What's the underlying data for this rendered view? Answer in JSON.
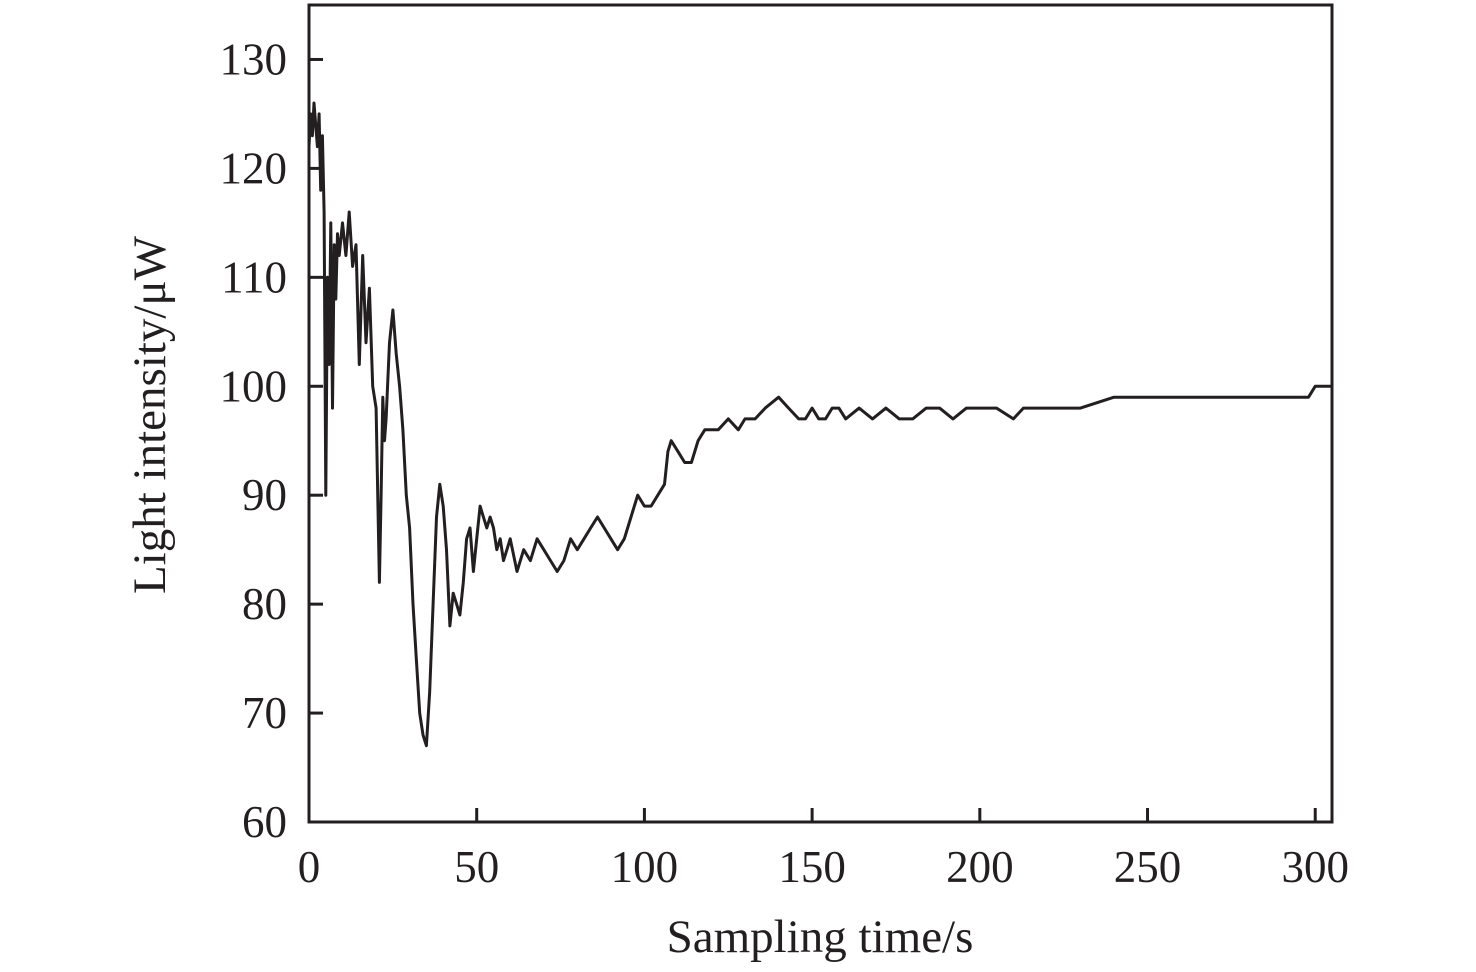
{
  "chart_data": {
    "type": "line",
    "title": "",
    "xlabel": "Sampling time/s",
    "ylabel": "Light intensity/μW",
    "xlim": [
      0,
      305
    ],
    "ylim": [
      60,
      135
    ],
    "xticks": [
      0,
      50,
      100,
      150,
      200,
      250,
      300
    ],
    "yticks": [
      60,
      70,
      80,
      90,
      100,
      110,
      120,
      130
    ],
    "grid": false,
    "legend": "none",
    "line_color": "#231f20",
    "series": [
      {
        "x": [
          0,
          0.5,
          1,
          1.5,
          2,
          2.5,
          3,
          3.5,
          4,
          4.5,
          5,
          5.5,
          6,
          6.5,
          7,
          7.5,
          8,
          8.5,
          9,
          10,
          11,
          12,
          13,
          14,
          15,
          16,
          17,
          18,
          19,
          20,
          21,
          21.5,
          22,
          22.5,
          23,
          24,
          25,
          26,
          27,
          28,
          29,
          30,
          31,
          32,
          33,
          34,
          35,
          36,
          37,
          38,
          39,
          40,
          41,
          42,
          43,
          44,
          45,
          46,
          47,
          48,
          49,
          50,
          51,
          52,
          53,
          54,
          55,
          56,
          57,
          58,
          59,
          60,
          62,
          64,
          66,
          68,
          70,
          72,
          74,
          76,
          78,
          80,
          82,
          84,
          86,
          88,
          90,
          92,
          94,
          96,
          98,
          100,
          102,
          104,
          106,
          107,
          108,
          110,
          112,
          114,
          116,
          118,
          120,
          122,
          125,
          128,
          130,
          133,
          136,
          140,
          143,
          146,
          148,
          150,
          152,
          154,
          156,
          158,
          160,
          164,
          168,
          172,
          176,
          180,
          184,
          188,
          192,
          196,
          200,
          205,
          210,
          213,
          216,
          220,
          225,
          230,
          240,
          250,
          260,
          270,
          275,
          280,
          285,
          290,
          295,
          298,
          300,
          303,
          305
        ],
        "y": [
          122,
          125,
          123,
          126,
          124,
          122,
          125,
          118,
          123,
          116,
          90,
          110,
          102,
          115,
          98,
          113,
          108,
          114,
          112,
          115,
          112,
          116,
          111,
          113,
          102,
          112,
          104,
          109,
          100,
          98,
          82,
          90,
          99,
          95,
          97,
          104,
          107,
          103,
          100,
          96,
          90,
          87,
          80,
          75,
          70,
          68,
          67,
          72,
          80,
          88,
          91,
          89,
          85,
          78,
          81,
          80,
          79,
          82,
          86,
          87,
          83,
          86,
          89,
          88,
          87,
          88,
          87,
          85,
          86,
          84,
          85,
          86,
          83,
          85,
          84,
          86,
          85,
          84,
          83,
          84,
          86,
          85,
          86,
          87,
          88,
          87,
          86,
          85,
          86,
          88,
          90,
          89,
          89,
          90,
          91,
          94,
          95,
          94,
          93,
          93,
          95,
          96,
          96,
          96,
          97,
          96,
          97,
          97,
          98,
          99,
          98,
          97,
          97,
          98,
          97,
          97,
          98,
          98,
          97,
          98,
          97,
          98,
          97,
          97,
          98,
          98,
          97,
          98,
          98,
          98,
          97,
          98,
          98,
          98,
          98,
          98,
          99,
          99,
          99,
          99,
          99,
          99,
          99,
          99,
          99,
          99,
          100,
          100,
          100
        ]
      }
    ]
  }
}
